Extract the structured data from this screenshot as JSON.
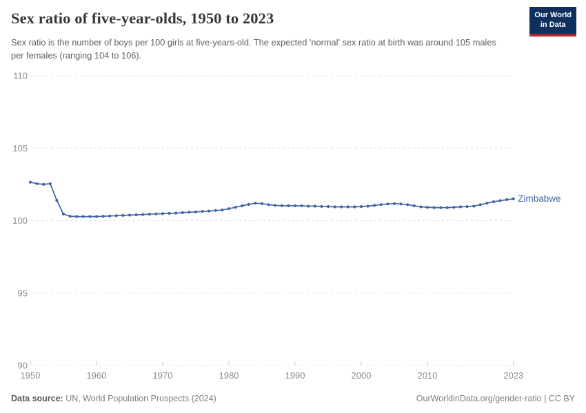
{
  "header": {
    "title": "Sex ratio of five-year-olds, 1950 to 2023",
    "subtitle": "Sex ratio is the number of boys per 100 girls at five-years-old. The expected 'normal' sex ratio at birth was around 105 males per females (ranging 104 to 106).",
    "logo": {
      "line1": "Our World",
      "line2": "in Data"
    }
  },
  "chart_data": {
    "type": "line",
    "title": "Sex ratio of five-year-olds, 1950 to 2023",
    "xlabel": "",
    "ylabel": "",
    "ylim": [
      90,
      110
    ],
    "xlim": [
      1950,
      2023
    ],
    "y_ticks": [
      110,
      105,
      100,
      95,
      90
    ],
    "x_ticks": [
      1950,
      1960,
      1970,
      1980,
      1990,
      2000,
      2010,
      2023
    ],
    "grid": "horizontal-dashed",
    "legend_position": "end-of-line-label",
    "x": [
      1950,
      1951,
      1952,
      1953,
      1954,
      1955,
      1956,
      1957,
      1958,
      1959,
      1960,
      1961,
      1962,
      1963,
      1964,
      1965,
      1966,
      1967,
      1968,
      1969,
      1970,
      1971,
      1972,
      1973,
      1974,
      1975,
      1976,
      1977,
      1978,
      1979,
      1980,
      1981,
      1982,
      1983,
      1984,
      1985,
      1986,
      1987,
      1988,
      1989,
      1990,
      1991,
      1992,
      1993,
      1994,
      1995,
      1996,
      1997,
      1998,
      1999,
      2000,
      2001,
      2002,
      2003,
      2004,
      2005,
      2006,
      2007,
      2008,
      2009,
      2010,
      2011,
      2012,
      2013,
      2014,
      2015,
      2016,
      2017,
      2018,
      2019,
      2020,
      2021,
      2022,
      2023
    ],
    "series": [
      {
        "name": "Zimbabwe",
        "color": "#4165a5",
        "values": [
          102.65,
          102.55,
          102.5,
          102.55,
          101.4,
          100.45,
          100.3,
          100.28,
          100.28,
          100.28,
          100.28,
          100.3,
          100.32,
          100.34,
          100.36,
          100.38,
          100.4,
          100.42,
          100.44,
          100.46,
          100.48,
          100.5,
          100.52,
          100.55,
          100.58,
          100.6,
          100.63,
          100.66,
          100.7,
          100.73,
          100.82,
          100.92,
          101.02,
          101.12,
          101.2,
          101.17,
          101.1,
          101.05,
          101.03,
          101.02,
          101.02,
          101.02,
          101.0,
          101.0,
          100.98,
          100.97,
          100.95,
          100.95,
          100.95,
          100.95,
          100.97,
          101.0,
          101.05,
          101.1,
          101.15,
          101.17,
          101.15,
          101.1,
          101.02,
          100.95,
          100.92,
          100.9,
          100.9,
          100.9,
          100.92,
          100.95,
          100.97,
          101.0,
          101.1,
          101.2,
          101.3,
          101.38,
          101.45,
          101.5
        ]
      }
    ]
  },
  "footer": {
    "source_label": "Data source:",
    "source_text": " UN, World Population Prospects (2024)",
    "credit": "OurWorldinData.org/gender-ratio | CC BY"
  },
  "colors": {
    "line": "#4165a5",
    "title_text": "#383636",
    "subtitle_text": "#5e5e5e",
    "axis_text": "#8c8c8c",
    "gridline": "#e0e0e0",
    "tick_mark": "#c8c8c8",
    "footer_text": "#7d7d7d",
    "logo_bg": "#0f2f5f",
    "logo_accent": "#b3242e"
  }
}
